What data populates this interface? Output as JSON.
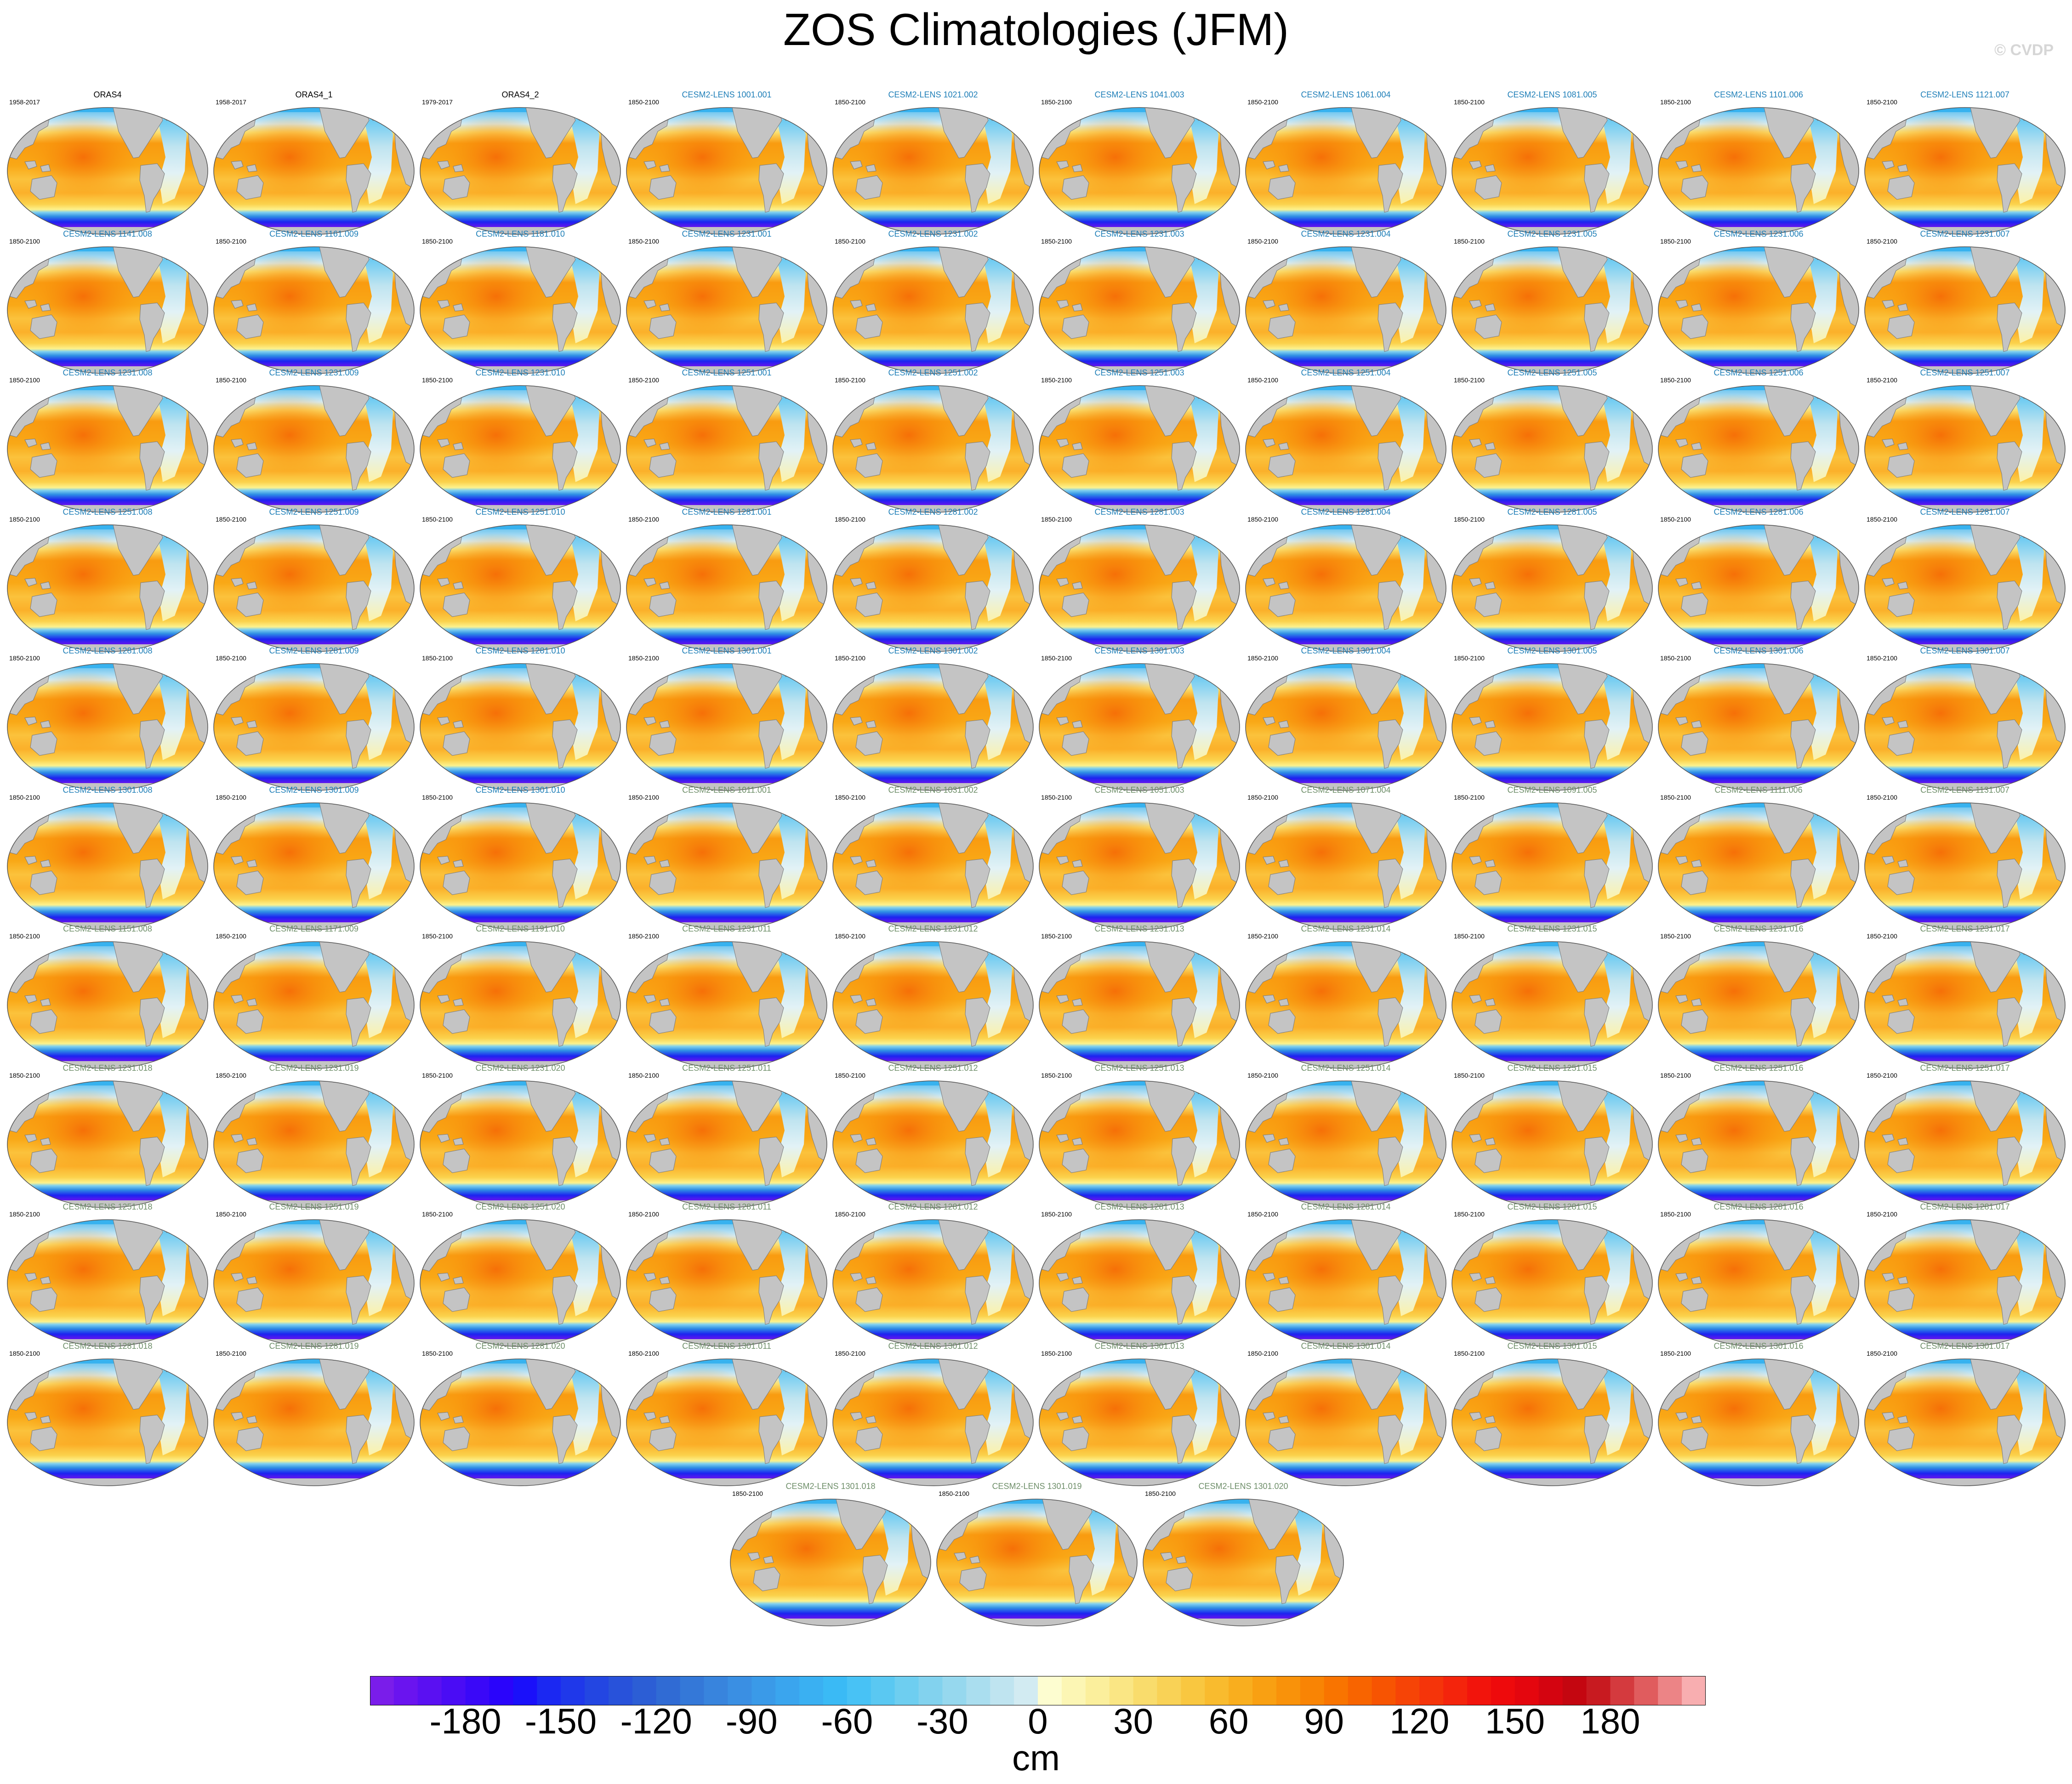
{
  "title": "ZOS Climatologies (JFM)",
  "copyright": "© CVDP",
  "colorbar": {
    "units": "cm",
    "ticks": [
      "-180",
      "-150",
      "-120",
      "-90",
      "-60",
      "-30",
      "0",
      "30",
      "60",
      "90",
      "120",
      "150",
      "180"
    ],
    "tick_values": [
      -180,
      -150,
      -120,
      -90,
      -60,
      -30,
      0,
      30,
      60,
      90,
      120,
      150,
      180
    ],
    "min": -210,
    "max": 210,
    "step": 5,
    "colors": [
      "#7a1dea",
      "#6a14ef",
      "#5a10f2",
      "#4a0cf5",
      "#3a08f8",
      "#2a04fb",
      "#1a10fa",
      "#1b28f2",
      "#1f38ea",
      "#2346e2",
      "#2852da",
      "#2c5ed5",
      "#306bd4",
      "#3478d8",
      "#3884dd",
      "#3a8fe3",
      "#3a9ae8",
      "#3aa5ee",
      "#3ab0f2",
      "#3abaf5",
      "#48c2f5",
      "#5ac8f2",
      "#6ecef0",
      "#82d2ee",
      "#96d8ee",
      "#aadeef",
      "#bfe4f0",
      "#d2ebf2",
      "#fdfdd0",
      "#fcf6b4",
      "#fbef9c",
      "#fae684",
      "#f9dc6c",
      "#f9d256",
      "#f9c740",
      "#f9bb2e",
      "#f9ae1e",
      "#f9a012",
      "#f9920a",
      "#f98404",
      "#f97400",
      "#f86400",
      "#f75402",
      "#f64406",
      "#f5340a",
      "#f4240c",
      "#f2140c",
      "#ee0a0c",
      "#e4060e",
      "#d40410",
      "#c40610",
      "#c81a20",
      "#d43a3e",
      "#e05c5e",
      "#ec8486",
      "#f8aeb0"
    ]
  },
  "panels": [
    {
      "title": "ORAS4",
      "period": "1958-2017",
      "style": "obs"
    },
    {
      "title": "ORAS4_1",
      "period": "1958-2017",
      "style": "obs"
    },
    {
      "title": "ORAS4_2",
      "period": "1979-2017",
      "style": "obs"
    },
    {
      "title": "CESM2-LENS 1001.001",
      "period": "1850-2100",
      "style": "model"
    },
    {
      "title": "CESM2-LENS 1021.002",
      "period": "1850-2100",
      "style": "model"
    },
    {
      "title": "CESM2-LENS 1041.003",
      "period": "1850-2100",
      "style": "model"
    },
    {
      "title": "CESM2-LENS 1061.004",
      "period": "1850-2100",
      "style": "model"
    },
    {
      "title": "CESM2-LENS 1081.005",
      "period": "1850-2100",
      "style": "model"
    },
    {
      "title": "CESM2-LENS 1101.006",
      "period": "1850-2100",
      "style": "model"
    },
    {
      "title": "CESM2-LENS 1121.007",
      "period": "1850-2100",
      "style": "model"
    },
    {
      "title": "CESM2-LENS 1141.008",
      "period": "1850-2100",
      "style": "model"
    },
    {
      "title": "CESM2-LENS 1161.009",
      "period": "1850-2100",
      "style": "model"
    },
    {
      "title": "CESM2-LENS 1181.010",
      "period": "1850-2100",
      "style": "model"
    },
    {
      "title": "CESM2-LENS 1231.001",
      "period": "1850-2100",
      "style": "model"
    },
    {
      "title": "CESM2-LENS 1231.002",
      "period": "1850-2100",
      "style": "model"
    },
    {
      "title": "CESM2-LENS 1231.003",
      "period": "1850-2100",
      "style": "model"
    },
    {
      "title": "CESM2-LENS 1231.004",
      "period": "1850-2100",
      "style": "model"
    },
    {
      "title": "CESM2-LENS 1231.005",
      "period": "1850-2100",
      "style": "model"
    },
    {
      "title": "CESM2-LENS 1231.006",
      "period": "1850-2100",
      "style": "model"
    },
    {
      "title": "CESM2-LENS 1231.007",
      "period": "1850-2100",
      "style": "model"
    },
    {
      "title": "CESM2-LENS 1231.008",
      "period": "1850-2100",
      "style": "model"
    },
    {
      "title": "CESM2-LENS 1231.009",
      "period": "1850-2100",
      "style": "model"
    },
    {
      "title": "CESM2-LENS 1231.010",
      "period": "1850-2100",
      "style": "model"
    },
    {
      "title": "CESM2-LENS 1251.001",
      "period": "1850-2100",
      "style": "model"
    },
    {
      "title": "CESM2-LENS 1251.002",
      "period": "1850-2100",
      "style": "model"
    },
    {
      "title": "CESM2-LENS 1251.003",
      "period": "1850-2100",
      "style": "model"
    },
    {
      "title": "CESM2-LENS 1251.004",
      "period": "1850-2100",
      "style": "model"
    },
    {
      "title": "CESM2-LENS 1251.005",
      "period": "1850-2100",
      "style": "model"
    },
    {
      "title": "CESM2-LENS 1251.006",
      "period": "1850-2100",
      "style": "model"
    },
    {
      "title": "CESM2-LENS 1251.007",
      "period": "1850-2100",
      "style": "model"
    },
    {
      "title": "CESM2-LENS 1251.008",
      "period": "1850-2100",
      "style": "model"
    },
    {
      "title": "CESM2-LENS 1251.009",
      "period": "1850-2100",
      "style": "model"
    },
    {
      "title": "CESM2-LENS 1251.010",
      "period": "1850-2100",
      "style": "model"
    },
    {
      "title": "CESM2-LENS 1281.001",
      "period": "1850-2100",
      "style": "model"
    },
    {
      "title": "CESM2-LENS 1281.002",
      "period": "1850-2100",
      "style": "model"
    },
    {
      "title": "CESM2-LENS 1281.003",
      "period": "1850-2100",
      "style": "model"
    },
    {
      "title": "CESM2-LENS 1281.004",
      "period": "1850-2100",
      "style": "model"
    },
    {
      "title": "CESM2-LENS 1281.005",
      "period": "1850-2100",
      "style": "model"
    },
    {
      "title": "CESM2-LENS 1281.006",
      "period": "1850-2100",
      "style": "model"
    },
    {
      "title": "CESM2-LENS 1281.007",
      "period": "1850-2100",
      "style": "model"
    },
    {
      "title": "CESM2-LENS 1281.008",
      "period": "1850-2100",
      "style": "model"
    },
    {
      "title": "CESM2-LENS 1281.009",
      "period": "1850-2100",
      "style": "model"
    },
    {
      "title": "CESM2-LENS 1281.010",
      "period": "1850-2100",
      "style": "model"
    },
    {
      "title": "CESM2-LENS 1301.001",
      "period": "1850-2100",
      "style": "model"
    },
    {
      "title": "CESM2-LENS 1301.002",
      "period": "1850-2100",
      "style": "model"
    },
    {
      "title": "CESM2-LENS 1301.003",
      "period": "1850-2100",
      "style": "model"
    },
    {
      "title": "CESM2-LENS 1301.004",
      "period": "1850-2100",
      "style": "model"
    },
    {
      "title": "CESM2-LENS 1301.005",
      "period": "1850-2100",
      "style": "model"
    },
    {
      "title": "CESM2-LENS 1301.006",
      "period": "1850-2100",
      "style": "model"
    },
    {
      "title": "CESM2-LENS 1301.007",
      "period": "1850-2100",
      "style": "model"
    },
    {
      "title": "CESM2-LENS 1301.008",
      "period": "1850-2100",
      "style": "model"
    },
    {
      "title": "CESM2-LENS 1301.009",
      "period": "1850-2100",
      "style": "model"
    },
    {
      "title": "CESM2-LENS 1301.010",
      "period": "1850-2100",
      "style": "model"
    },
    {
      "title": "CESM2-LENS 1011.001",
      "period": "1850-2100",
      "style": "alt"
    },
    {
      "title": "CESM2-LENS 1031.002",
      "period": "1850-2100",
      "style": "alt"
    },
    {
      "title": "CESM2-LENS 1051.003",
      "period": "1850-2100",
      "style": "alt"
    },
    {
      "title": "CESM2-LENS 1071.004",
      "period": "1850-2100",
      "style": "alt"
    },
    {
      "title": "CESM2-LENS 1091.005",
      "period": "1850-2100",
      "style": "alt"
    },
    {
      "title": "CESM2-LENS 1111.006",
      "period": "1850-2100",
      "style": "alt"
    },
    {
      "title": "CESM2-LENS 1131.007",
      "period": "1850-2100",
      "style": "alt"
    },
    {
      "title": "CESM2-LENS 1151.008",
      "period": "1850-2100",
      "style": "alt"
    },
    {
      "title": "CESM2-LENS 1171.009",
      "period": "1850-2100",
      "style": "alt"
    },
    {
      "title": "CESM2-LENS 1191.010",
      "period": "1850-2100",
      "style": "alt"
    },
    {
      "title": "CESM2-LENS 1231.011",
      "period": "1850-2100",
      "style": "alt"
    },
    {
      "title": "CESM2-LENS 1231.012",
      "period": "1850-2100",
      "style": "alt"
    },
    {
      "title": "CESM2-LENS 1231.013",
      "period": "1850-2100",
      "style": "alt"
    },
    {
      "title": "CESM2-LENS 1231.014",
      "period": "1850-2100",
      "style": "alt"
    },
    {
      "title": "CESM2-LENS 1231.015",
      "period": "1850-2100",
      "style": "alt"
    },
    {
      "title": "CESM2-LENS 1231.016",
      "period": "1850-2100",
      "style": "alt"
    },
    {
      "title": "CESM2-LENS 1231.017",
      "period": "1850-2100",
      "style": "alt"
    },
    {
      "title": "CESM2-LENS 1231.018",
      "period": "1850-2100",
      "style": "alt"
    },
    {
      "title": "CESM2-LENS 1231.019",
      "period": "1850-2100",
      "style": "alt"
    },
    {
      "title": "CESM2-LENS 1231.020",
      "period": "1850-2100",
      "style": "alt"
    },
    {
      "title": "CESM2-LENS 1251.011",
      "period": "1850-2100",
      "style": "alt"
    },
    {
      "title": "CESM2-LENS 1251.012",
      "period": "1850-2100",
      "style": "alt"
    },
    {
      "title": "CESM2-LENS 1251.013",
      "period": "1850-2100",
      "style": "alt"
    },
    {
      "title": "CESM2-LENS 1251.014",
      "period": "1850-2100",
      "style": "alt"
    },
    {
      "title": "CESM2-LENS 1251.015",
      "period": "1850-2100",
      "style": "alt"
    },
    {
      "title": "CESM2-LENS 1251.016",
      "period": "1850-2100",
      "style": "alt"
    },
    {
      "title": "CESM2-LENS 1251.017",
      "period": "1850-2100",
      "style": "alt"
    },
    {
      "title": "CESM2-LENS 1251.018",
      "period": "1850-2100",
      "style": "alt"
    },
    {
      "title": "CESM2-LENS 1251.019",
      "period": "1850-2100",
      "style": "alt"
    },
    {
      "title": "CESM2-LENS 1251.020",
      "period": "1850-2100",
      "style": "alt"
    },
    {
      "title": "CESM2-LENS 1281.011",
      "period": "1850-2100",
      "style": "alt"
    },
    {
      "title": "CESM2-LENS 1281.012",
      "period": "1850-2100",
      "style": "alt"
    },
    {
      "title": "CESM2-LENS 1281.013",
      "period": "1850-2100",
      "style": "alt"
    },
    {
      "title": "CESM2-LENS 1281.014",
      "period": "1850-2100",
      "style": "alt"
    },
    {
      "title": "CESM2-LENS 1281.015",
      "period": "1850-2100",
      "style": "alt"
    },
    {
      "title": "CESM2-LENS 1281.016",
      "period": "1850-2100",
      "style": "alt"
    },
    {
      "title": "CESM2-LENS 1281.017",
      "period": "1850-2100",
      "style": "alt"
    },
    {
      "title": "CESM2-LENS 1281.018",
      "period": "1850-2100",
      "style": "alt"
    },
    {
      "title": "CESM2-LENS 1281.019",
      "period": "1850-2100",
      "style": "alt"
    },
    {
      "title": "CESM2-LENS 1281.020",
      "period": "1850-2100",
      "style": "alt"
    },
    {
      "title": "CESM2-LENS 1301.011",
      "period": "1850-2100",
      "style": "alt"
    },
    {
      "title": "CESM2-LENS 1301.012",
      "period": "1850-2100",
      "style": "alt"
    },
    {
      "title": "CESM2-LENS 1301.013",
      "period": "1850-2100",
      "style": "alt"
    },
    {
      "title": "CESM2-LENS 1301.014",
      "period": "1850-2100",
      "style": "alt"
    },
    {
      "title": "CESM2-LENS 1301.015",
      "period": "1850-2100",
      "style": "alt"
    },
    {
      "title": "CESM2-LENS 1301.016",
      "period": "1850-2100",
      "style": "alt"
    },
    {
      "title": "CESM2-LENS 1301.017",
      "period": "1850-2100",
      "style": "alt"
    },
    {
      "title": "CESM2-LENS 1301.018",
      "period": "1850-2100",
      "style": "alt"
    },
    {
      "title": "CESM2-LENS 1301.019",
      "period": "1850-2100",
      "style": "alt"
    },
    {
      "title": "CESM2-LENS 1301.020",
      "period": "1850-2100",
      "style": "alt"
    }
  ]
}
